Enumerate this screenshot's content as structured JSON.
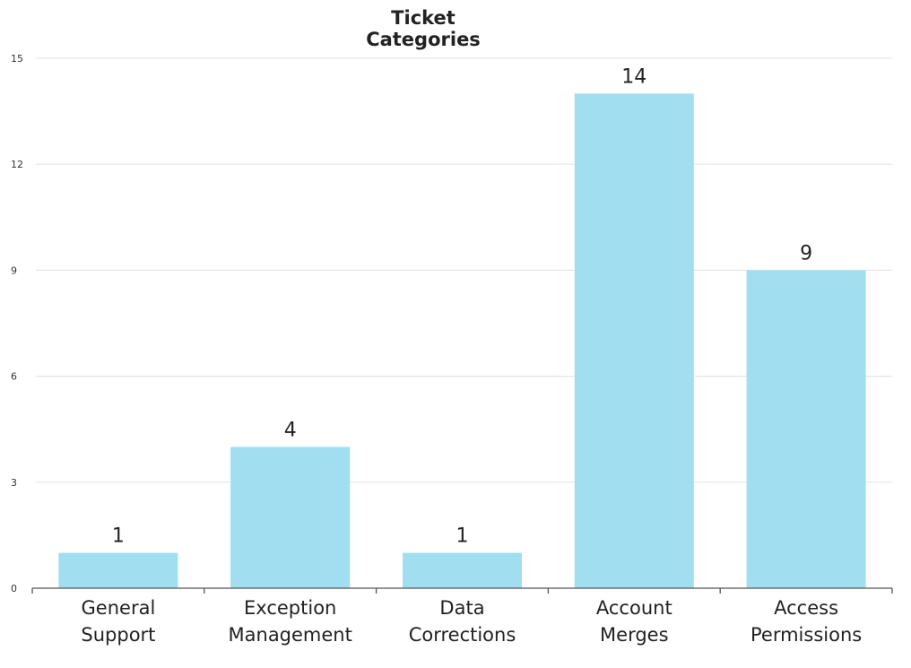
{
  "chart_data": {
    "type": "bar",
    "title": "Ticket Categories",
    "categories": [
      [
        "General",
        "Support"
      ],
      [
        "Exception",
        "Management"
      ],
      [
        "Data",
        "Corrections"
      ],
      [
        "Account",
        "Merges"
      ],
      [
        "Access",
        "Permissions"
      ]
    ],
    "values": [
      1,
      4,
      1,
      14,
      9
    ],
    "data_labels": [
      "1",
      "4",
      "1",
      "14",
      "9"
    ],
    "xlabel": "",
    "ylabel": "",
    "ylim": [
      0,
      15
    ],
    "yticks": [
      "0",
      "3",
      "6",
      "9",
      "12",
      "15"
    ],
    "grid": true,
    "legend": "none",
    "bar_color": "#a0def0",
    "grid_color": "#e6e6e6",
    "axis_color": "#555555"
  }
}
